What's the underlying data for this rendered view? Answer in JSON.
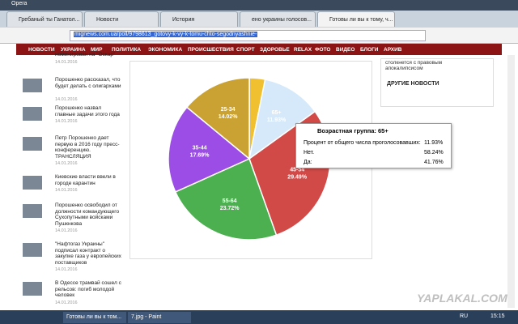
{
  "window": {
    "title": "Opera"
  },
  "tabs": [
    "Гребаный ты Ганатол...",
    "Новости",
    "История",
    "ено украины голосов...",
    "Готовы ли вы к тому, ч..."
  ],
  "address": {
    "url": "mignews.com.ua/poll/9798613_gotovy-k-vy-k-tomu-chto-segodnyashnie-"
  },
  "menu": [
    "НОВОСТИ",
    "УКРАИНА",
    "МИР",
    "ПОЛИТИКА",
    "ЭКОНОМИКА",
    "ПРОИСШЕСТВИЯ",
    "СПОРТ",
    "ЗДОРОВЬЕ",
    "RELAX",
    "ФОТО",
    "ВИДЕО",
    "БЛОГИ",
    "АРХИВ"
  ],
  "news": [
    {
      "title": "номинирован на \"Оскар\"",
      "date": "14.01.2016"
    },
    {
      "title": "Порошенко рассказал, что будет делать с олигархами",
      "date": "14.01.2016"
    },
    {
      "title": "Порошенко назвал главные задачи этого года",
      "date": "14.01.2016"
    },
    {
      "title": "Петр Порошенко дает первую в 2016 году пресс-конференцию. ТРАНСЛЯЦИЯ",
      "date": "14.01.2016"
    },
    {
      "title": "Киевские власти ввели в городе карантин",
      "date": "14.01.2016"
    },
    {
      "title": "Порошенко освободил от должности командующего Сухопутными войсками Пушкнкова",
      "date": "14.01.2016"
    },
    {
      "title": "\"Нафтогаз Украины\" подписал контракт о закупке газа у европейских поставщиков",
      "date": "14.01.2016"
    },
    {
      "title": "В Одессе трамвай сошел с рельсов: погиб молодой человек",
      "date": "14.01.2016"
    }
  ],
  "right": {
    "text": "столкнется с правовым апокалипсисом",
    "heading": "ДРУГИЕ НОВОСТИ"
  },
  "chart_data": {
    "type": "pie",
    "categories": [
      null,
      "65+",
      "45-54",
      "55-64",
      "35-44",
      "25-34"
    ],
    "values": [
      3.15,
      11.93,
      29.49,
      23.72,
      17.69,
      14.02
    ],
    "value_labels": [
      null,
      "11.93%",
      "29.49%",
      "23.72%",
      "17.69%",
      "14.02%"
    ],
    "colors": [
      "#f0c030",
      "#d6e9fb",
      "#d24a48",
      "#4caf50",
      "#9b4de6",
      "#c9a233"
    ]
  },
  "tooltip": {
    "title": "Возрастная группа: 65+",
    "rows": [
      [
        "Процент от общего числа проголосовавших:",
        "11.93%"
      ],
      [
        "Нет.",
        "58.24%"
      ],
      [
        "Да:",
        "41.76%"
      ]
    ]
  },
  "watermark": "YAPLAKAL.COM",
  "taskbar": {
    "items": [
      "Готовы ли вы к том...",
      "7.jpg - Paint"
    ],
    "lang": "RU",
    "time": "15:15"
  }
}
